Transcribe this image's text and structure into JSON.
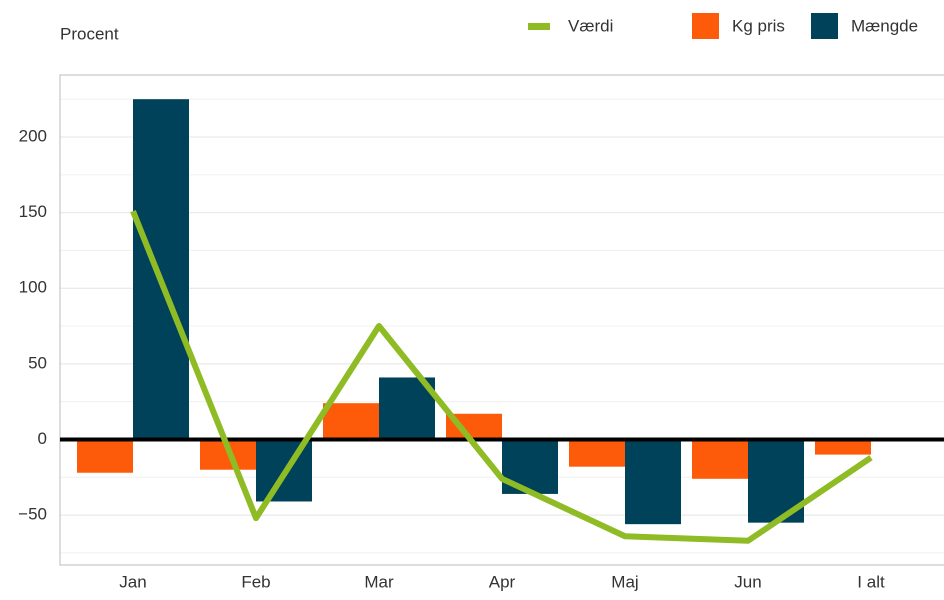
{
  "chart_data": {
    "type": "bar_line",
    "y_label": "Procent",
    "categories": [
      "Jan",
      "Feb",
      "Mar",
      "Apr",
      "Maj",
      "Jun",
      "I alt"
    ],
    "series": [
      {
        "name": "Værdi",
        "color": "#8fbb24",
        "kind": "line",
        "values": [
          151,
          -52,
          75,
          -26,
          -64,
          -67,
          -12
        ]
      },
      {
        "name": "Kg pris",
        "color": "#fd5a0a",
        "kind": "bar",
        "values": [
          -22,
          -20,
          24,
          17,
          -18,
          -26,
          -10
        ]
      },
      {
        "name": "Mængde",
        "color": "#00425a",
        "kind": "bar",
        "values": [
          225,
          -41,
          41,
          -36,
          -56,
          -55,
          null
        ]
      }
    ],
    "ylim": [
      -83,
      241
    ],
    "yticks": [
      {
        "value": -50,
        "label": "−50"
      },
      0,
      50,
      100,
      150,
      200
    ],
    "minor_yticks": [
      -75,
      -25,
      25,
      75,
      125,
      175,
      225
    ],
    "grid": true,
    "legend": "top-right"
  }
}
